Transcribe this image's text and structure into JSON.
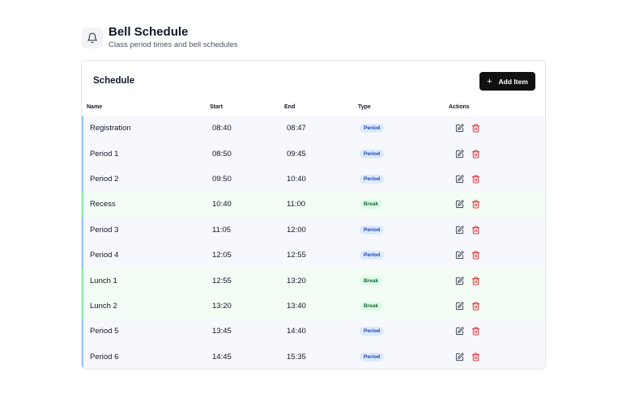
{
  "header": {
    "icon": "bell-icon",
    "title": "Bell Schedule",
    "subtitle": "Class period times and bell schedules"
  },
  "card": {
    "title": "Schedule",
    "add_button_label": "Add Item",
    "add_button_icon": "plus-icon"
  },
  "table": {
    "columns": [
      "Name",
      "Start",
      "End",
      "Type",
      "Actions"
    ],
    "rows": [
      {
        "name": "Registration",
        "start": "08:40",
        "end": "08:47",
        "type": "Period"
      },
      {
        "name": "Period 1",
        "start": "08:50",
        "end": "09:45",
        "type": "Period"
      },
      {
        "name": "Period 2",
        "start": "09:50",
        "end": "10:40",
        "type": "Period"
      },
      {
        "name": "Recess",
        "start": "10:40",
        "end": "11:00",
        "type": "Break"
      },
      {
        "name": "Period 3",
        "start": "11:05",
        "end": "12:00",
        "type": "Period"
      },
      {
        "name": "Period 4",
        "start": "12:05",
        "end": "12:55",
        "type": "Period"
      },
      {
        "name": "Lunch 1",
        "start": "12:55",
        "end": "13:20",
        "type": "Break"
      },
      {
        "name": "Lunch 2",
        "start": "13:20",
        "end": "13:40",
        "type": "Break"
      },
      {
        "name": "Period 5",
        "start": "13:45",
        "end": "14:40",
        "type": "Period"
      },
      {
        "name": "Period 6",
        "start": "14:45",
        "end": "15:35",
        "type": "Period"
      }
    ]
  },
  "colors": {
    "period_accent": "#93c5fd",
    "break_accent": "#86efac",
    "period_badge_bg": "#dbeafe",
    "break_badge_bg": "#dcfce7",
    "delete_icon": "#dc2626"
  }
}
